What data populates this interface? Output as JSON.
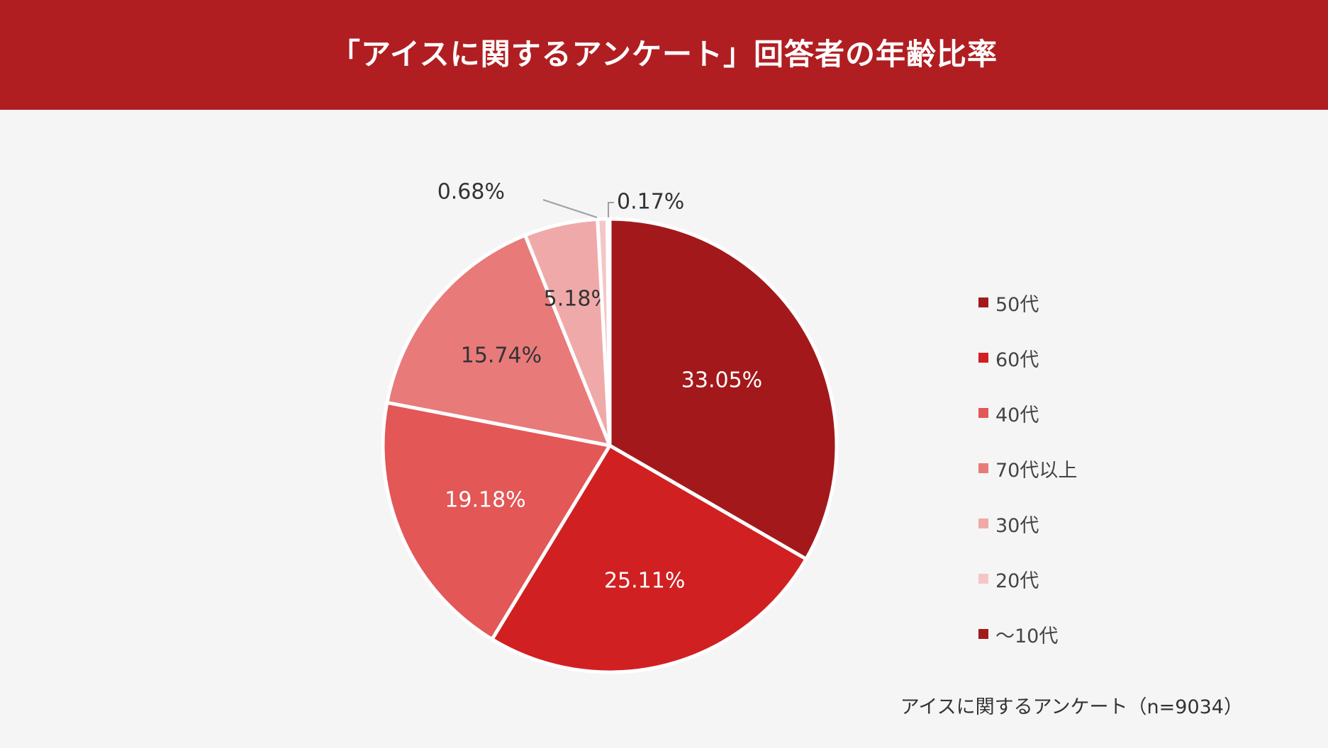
{
  "title": "「アイスに関するアンケート」回答者の年齢比率",
  "source": "アイスに関するアンケート（n=9034）",
  "colors": {
    "header_bg": "#b01e22",
    "background": "#f5f5f5"
  },
  "chart_data": {
    "type": "pie",
    "title": "「アイスに関するアンケート」回答者の年齢比率",
    "slices": [
      {
        "label": "50代",
        "value": 33.05,
        "display": "33.05%",
        "color": "#a3191b",
        "text_color": "#ffffff"
      },
      {
        "label": "60代",
        "value": 25.11,
        "display": "25.11%",
        "color": "#d12022",
        "text_color": "#ffffff"
      },
      {
        "label": "40代",
        "value": 19.18,
        "display": "19.18%",
        "color": "#e35757",
        "text_color": "#ffffff"
      },
      {
        "label": "70代以上",
        "value": 15.74,
        "display": "15.74%",
        "color": "#e87a7a",
        "text_color": "#333333"
      },
      {
        "label": "30代",
        "value": 5.18,
        "display": "5.18%",
        "color": "#f0a9a9",
        "text_color": "#333333"
      },
      {
        "label": "20代",
        "value": 0.68,
        "display": "0.68%",
        "color": "#f5c6c6",
        "text_color": "#333333"
      },
      {
        "label": "～10代",
        "value": 0.17,
        "display": "0.17%",
        "color": "#a3191b",
        "text_color": "#333333"
      }
    ],
    "legend_position": "right"
  }
}
